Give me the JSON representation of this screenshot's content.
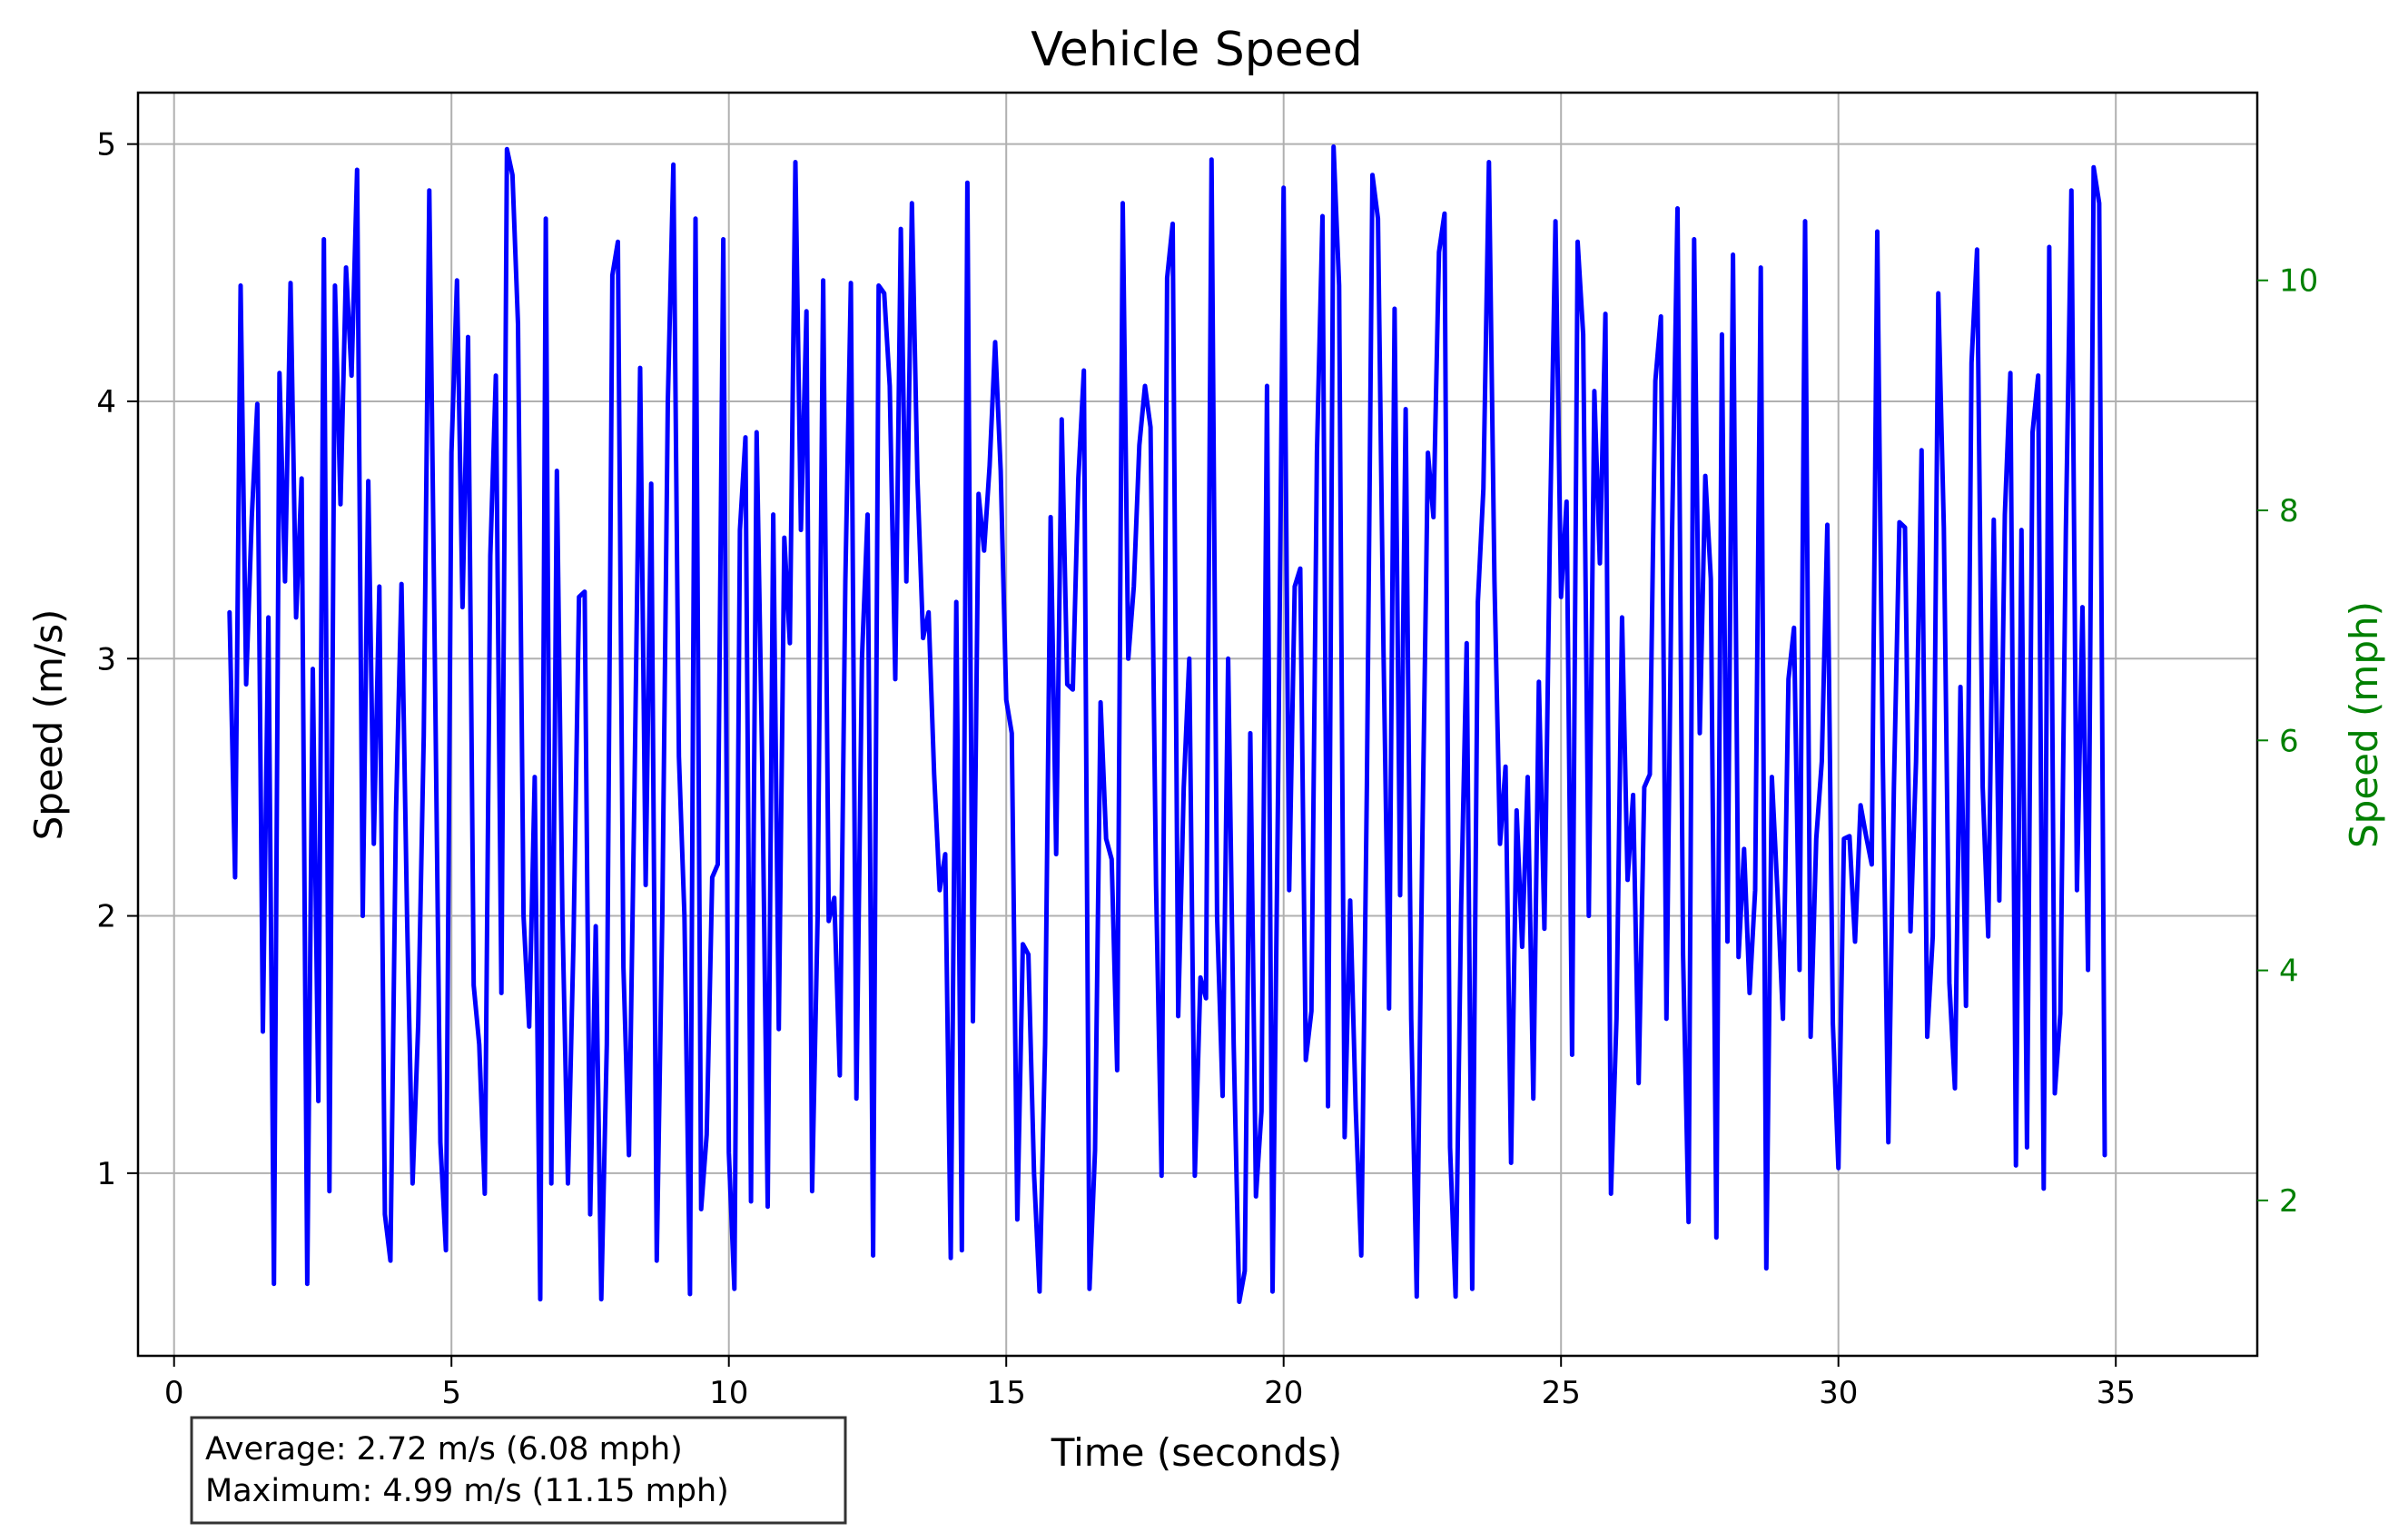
{
  "chart_data": {
    "type": "line",
    "title": "Vehicle Speed",
    "xlabel": "Time (seconds)",
    "ylabel": "Speed (m/s)",
    "y2label": "Speed (mph)",
    "xlim": [
      -0.65,
      37.55
    ],
    "ylim": [
      0.29,
      5.2
    ],
    "y2_per_y": 2.237,
    "xticks": [
      0,
      5,
      10,
      15,
      20,
      25,
      30,
      35
    ],
    "yticks": [
      1,
      2,
      3,
      4,
      5
    ],
    "y2ticks": [
      2,
      4,
      6,
      8,
      10
    ],
    "grid": true,
    "colors": {
      "line": "#0000ff",
      "right_axis": "#008000"
    },
    "series": [
      {
        "x_start": 1.0,
        "x_step": 0.1,
        "values": [
          3.18,
          2.15,
          4.45,
          2.9,
          3.55,
          3.99,
          1.55,
          3.16,
          0.57,
          4.11,
          3.3,
          4.46,
          3.16,
          3.7,
          0.57,
          2.96,
          1.28,
          4.63,
          0.93,
          4.45,
          3.6,
          4.52,
          4.1,
          4.9,
          2.0,
          3.69,
          2.28,
          3.28,
          0.84,
          0.66,
          2.4,
          3.29,
          2.0,
          0.96,
          1.58,
          2.7,
          4.82,
          3.0,
          1.12,
          0.7,
          3.8,
          4.47,
          3.2,
          4.25,
          1.73,
          1.5,
          0.92,
          3.4,
          4.1,
          1.7,
          4.98,
          4.88,
          4.3,
          2.0,
          1.57,
          2.54,
          0.51,
          4.71,
          0.96,
          3.73,
          2.0,
          0.96,
          1.9,
          3.24,
          3.26,
          0.84,
          1.96,
          0.51,
          1.5,
          4.49,
          4.62,
          1.8,
          1.07,
          2.5,
          4.13,
          2.12,
          3.68,
          0.66,
          2.0,
          4.0,
          4.92,
          2.62,
          2.0,
          0.53,
          4.71,
          0.86,
          1.15,
          2.15,
          2.2,
          4.63,
          1.08,
          0.55,
          3.5,
          3.86,
          0.89,
          3.88,
          2.6,
          0.87,
          3.56,
          1.56,
          3.47,
          3.06,
          4.93,
          3.5,
          4.35,
          0.93,
          2.0,
          4.47,
          1.98,
          2.07,
          1.38,
          3.3,
          4.46,
          1.29,
          3.0,
          3.56,
          0.68,
          4.45,
          4.42,
          4.06,
          2.92,
          4.67,
          3.3,
          4.77,
          3.7,
          3.08,
          3.18,
          2.55,
          2.1,
          2.24,
          0.67,
          3.22,
          0.7,
          4.85,
          1.59,
          3.64,
          3.42,
          3.75,
          4.23,
          3.73,
          2.84,
          2.71,
          0.82,
          1.89,
          1.85,
          1.0,
          0.54,
          1.5,
          3.55,
          2.24,
          3.93,
          2.9,
          2.88,
          3.7,
          4.12,
          0.55,
          1.09,
          2.83,
          2.3,
          2.22,
          1.4,
          4.77,
          3.0,
          3.28,
          3.83,
          4.06,
          3.9,
          2.12,
          0.99,
          4.48,
          4.69,
          1.61,
          2.5,
          3.0,
          0.99,
          1.76,
          1.68,
          4.94,
          2.0,
          1.3,
          3.0,
          1.5,
          0.5,
          0.62,
          2.71,
          0.91,
          1.24,
          4.06,
          0.54,
          2.5,
          4.83,
          2.1,
          3.28,
          3.35,
          1.44,
          1.63,
          3.8,
          4.72,
          1.26,
          4.99,
          4.45,
          1.14,
          2.06,
          1.25,
          0.68,
          2.51,
          4.88,
          4.71,
          3.03,
          1.64,
          4.36,
          2.08,
          3.97,
          1.6,
          0.52,
          2.3,
          3.8,
          3.55,
          4.58,
          4.73,
          1.1,
          0.52,
          2.04,
          3.06,
          0.55,
          3.22,
          3.66,
          4.93,
          3.3,
          2.28,
          2.58,
          1.04,
          2.41,
          1.88,
          2.54,
          1.29,
          2.91,
          1.95,
          3.5,
          4.7,
          3.24,
          3.61,
          1.46,
          4.62,
          4.26,
          2.0,
          4.04,
          3.37,
          4.34,
          0.92,
          1.6,
          3.16,
          2.14,
          2.47,
          1.35,
          2.5,
          2.55,
          4.08,
          4.33,
          1.6,
          3.47,
          4.75,
          1.85,
          0.81,
          4.63,
          2.71,
          3.71,
          3.31,
          0.75,
          4.26,
          1.9,
          4.57,
          1.84,
          2.26,
          1.7,
          2.1,
          4.52,
          0.63,
          2.54,
          2.1,
          1.6,
          2.92,
          3.12,
          1.79,
          4.7,
          1.53,
          2.3,
          2.6,
          3.52,
          1.58,
          1.02,
          2.3,
          2.31,
          1.9,
          2.43,
          2.31,
          2.2,
          4.66,
          2.6,
          1.12,
          2.5,
          3.53,
          3.51,
          1.94,
          2.6,
          3.81,
          1.53,
          1.92,
          4.42,
          3.51,
          1.74,
          1.33,
          2.89,
          1.65,
          4.15,
          4.59,
          2.5,
          1.92,
          3.54,
          2.06,
          3.56,
          4.11,
          1.03,
          3.5,
          1.1,
          3.88,
          4.1,
          0.94,
          4.6,
          1.31,
          1.62,
          3.5,
          4.82,
          2.1,
          3.2,
          1.79,
          4.91,
          4.77,
          1.07
        ]
      }
    ],
    "stats": {
      "average": "Average: 2.72 m/s (6.08 mph)",
      "maximum": "Maximum: 4.99 m/s (11.15 mph)"
    }
  }
}
